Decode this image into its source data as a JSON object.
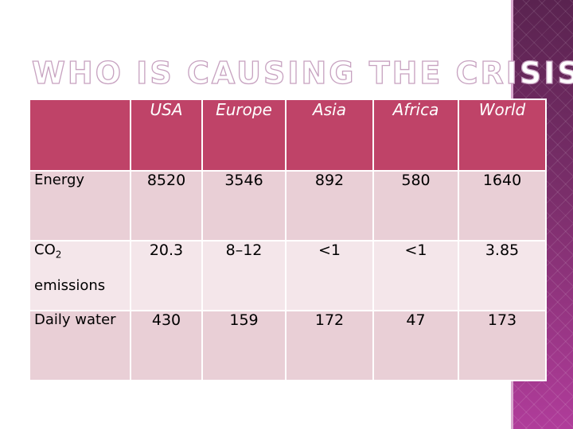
{
  "slide": {
    "title": "WHO IS CAUSING THE CRISIS",
    "accent_color": "#bf4368",
    "deco_color": "#6e2a5e"
  },
  "table": {
    "columns": [
      "",
      "USA",
      "Europe",
      "Asia",
      "Africa",
      "World"
    ],
    "rows": [
      {
        "label": "Energy",
        "label_sub": "",
        "label_cont": "",
        "values": [
          "8520",
          "3546",
          "892",
          "580",
          "1640"
        ]
      },
      {
        "label": "CO",
        "label_sub": "2",
        "label_cont": "emissions",
        "values": [
          "20.3",
          "8–12",
          "<1",
          "<1",
          "3.85"
        ]
      },
      {
        "label": "Daily water",
        "label_sub": "",
        "label_cont": "",
        "values": [
          "430",
          "159",
          "172",
          "47",
          "173"
        ]
      }
    ]
  }
}
